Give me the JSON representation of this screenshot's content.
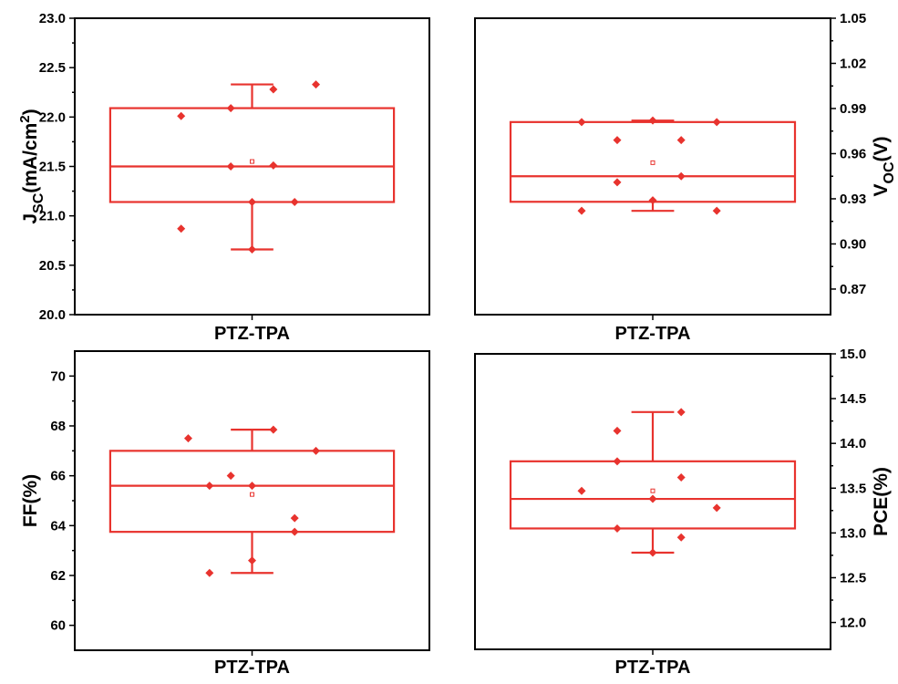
{
  "chart_data": [
    {
      "type": "box",
      "category": "PTZ-TPA",
      "ylabel_base": "J",
      "ylabel_sub": "SC",
      "ylabel_rest": "(mA/cm",
      "ylabel_sup": "2",
      "ylabel_end": ")",
      "yaxis_side": "left",
      "ylim": [
        20.0,
        23.0
      ],
      "yticks": [
        "20.0",
        "20.5",
        "21.0",
        "21.5",
        "22.0",
        "22.5",
        "23.0"
      ],
      "ytick_values": [
        20.0,
        20.5,
        21.0,
        21.5,
        22.0,
        22.5,
        23.0
      ],
      "box": {
        "q1": 21.14,
        "median": 21.5,
        "q3": 22.09,
        "mean": 21.55,
        "whisker_low": 20.66,
        "whisker_high": 22.33
      },
      "points": [
        {
          "x": -0.5,
          "y": 22.01
        },
        {
          "x": -0.5,
          "y": 20.87
        },
        {
          "x": -0.15,
          "y": 22.09
        },
        {
          "x": -0.15,
          "y": 21.5
        },
        {
          "x": 0.0,
          "y": 21.14
        },
        {
          "x": 0.0,
          "y": 20.66
        },
        {
          "x": 0.15,
          "y": 22.28
        },
        {
          "x": 0.15,
          "y": 21.51
        },
        {
          "x": 0.3,
          "y": 21.14
        },
        {
          "x": 0.45,
          "y": 22.33
        }
      ]
    },
    {
      "type": "box",
      "category": "PTZ-TPA",
      "ylabel_base": "V",
      "ylabel_sub": "OC",
      "ylabel_rest": "(V)",
      "ylabel_sup": "",
      "ylabel_end": "",
      "yaxis_side": "right",
      "ylim": [
        0.853,
        1.05
      ],
      "yticks": [
        "0.87",
        "0.90",
        "0.93",
        "0.96",
        "0.99",
        "1.02",
        "1.05"
      ],
      "ytick_values": [
        0.87,
        0.9,
        0.93,
        0.96,
        0.99,
        1.02,
        1.05
      ],
      "box": {
        "q1": 0.928,
        "median": 0.945,
        "q3": 0.981,
        "mean": 0.954,
        "whisker_low": 0.922,
        "whisker_high": 0.982
      },
      "points": [
        {
          "x": -0.5,
          "y": 0.981
        },
        {
          "x": -0.5,
          "y": 0.922
        },
        {
          "x": -0.25,
          "y": 0.969
        },
        {
          "x": -0.25,
          "y": 0.941
        },
        {
          "x": 0.0,
          "y": 0.982
        },
        {
          "x": 0.0,
          "y": 0.929
        },
        {
          "x": 0.2,
          "y": 0.969
        },
        {
          "x": 0.2,
          "y": 0.945
        },
        {
          "x": 0.45,
          "y": 0.981
        },
        {
          "x": 0.45,
          "y": 0.922
        }
      ]
    },
    {
      "type": "box",
      "category": "PTZ-TPA",
      "ylabel_base": "FF(%)",
      "ylabel_sub": "",
      "ylabel_rest": "",
      "ylabel_sup": "",
      "ylabel_end": "",
      "yaxis_side": "left",
      "ylim": [
        59.0,
        71.0
      ],
      "yticks": [
        "60",
        "62",
        "64",
        "66",
        "68",
        "70"
      ],
      "ytick_values": [
        60,
        62,
        64,
        66,
        68,
        70
      ],
      "box": {
        "q1": 63.75,
        "median": 65.6,
        "q3": 67.0,
        "mean": 65.25,
        "whisker_low": 62.1,
        "whisker_high": 67.85
      },
      "points": [
        {
          "x": -0.45,
          "y": 67.5
        },
        {
          "x": -0.3,
          "y": 65.6
        },
        {
          "x": -0.3,
          "y": 62.1
        },
        {
          "x": -0.15,
          "y": 66.0
        },
        {
          "x": 0.0,
          "y": 65.6
        },
        {
          "x": 0.0,
          "y": 62.6
        },
        {
          "x": 0.15,
          "y": 67.85
        },
        {
          "x": 0.3,
          "y": 64.3
        },
        {
          "x": 0.3,
          "y": 63.75
        },
        {
          "x": 0.45,
          "y": 67.0
        }
      ]
    },
    {
      "type": "box",
      "category": "PTZ-TPA",
      "ylabel_base": "PCE(%)",
      "ylabel_sub": "",
      "ylabel_rest": "",
      "ylabel_sup": "",
      "ylabel_end": "",
      "yaxis_side": "right",
      "ylim": [
        11.7,
        15.0
      ],
      "yticks": [
        "12.0",
        "12.5",
        "13.0",
        "13.5",
        "14.0",
        "14.5",
        "15.0"
      ],
      "ytick_values": [
        12.0,
        12.5,
        13.0,
        13.5,
        14.0,
        14.5,
        15.0
      ],
      "box": {
        "q1": 13.05,
        "median": 13.38,
        "q3": 13.8,
        "mean": 13.47,
        "whisker_low": 12.78,
        "whisker_high": 14.35
      },
      "points": [
        {
          "x": -0.5,
          "y": 13.47
        },
        {
          "x": -0.25,
          "y": 14.14
        },
        {
          "x": -0.25,
          "y": 13.8
        },
        {
          "x": -0.25,
          "y": 13.05
        },
        {
          "x": 0.0,
          "y": 13.38
        },
        {
          "x": 0.0,
          "y": 12.78
        },
        {
          "x": 0.2,
          "y": 14.35
        },
        {
          "x": 0.2,
          "y": 13.62
        },
        {
          "x": 0.2,
          "y": 12.95
        },
        {
          "x": 0.45,
          "y": 13.28
        }
      ]
    }
  ]
}
